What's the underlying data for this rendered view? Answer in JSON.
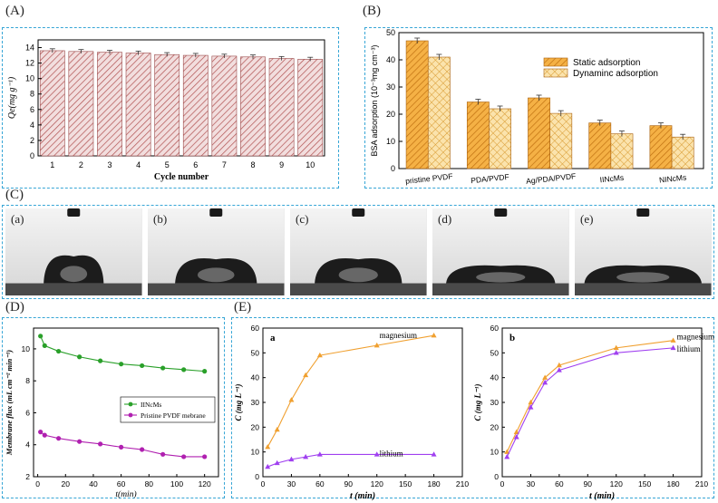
{
  "panels": {
    "A": {
      "label": "(A)"
    },
    "B": {
      "label": "(B)"
    },
    "C": {
      "label": "(C)",
      "photos": [
        {
          "label": "(a)",
          "spread": 0.44,
          "height": 0.56
        },
        {
          "label": "(b)",
          "spread": 0.6,
          "height": 0.5
        },
        {
          "label": "(c)",
          "spread": 0.64,
          "height": 0.5
        },
        {
          "label": "(d)",
          "spread": 0.8,
          "height": 0.36
        },
        {
          "label": "(e)",
          "spread": 0.86,
          "height": 0.36
        }
      ]
    },
    "D": {
      "label": "(D)"
    },
    "E": {
      "label": "(E)"
    }
  },
  "chart_data": [
    {
      "id": "A",
      "type": "bar",
      "categories": [
        "1",
        "2",
        "3",
        "4",
        "5",
        "6",
        "7",
        "8",
        "9",
        "10"
      ],
      "values": [
        13.6,
        13.5,
        13.4,
        13.3,
        13.1,
        13.0,
        12.9,
        12.8,
        12.6,
        12.5
      ],
      "errors": [
        0.25,
        0.25,
        0.25,
        0.25,
        0.25,
        0.25,
        0.25,
        0.25,
        0.25,
        0.25
      ],
      "xlabel": "Cycle number",
      "ylabel": "Qe(mg g⁻¹)",
      "ylim": [
        0,
        15
      ],
      "yticks": [
        0,
        2,
        4,
        6,
        8,
        10,
        12,
        14
      ],
      "bar_color": "#c88a8a"
    },
    {
      "id": "B",
      "type": "bar",
      "categories": [
        "pristine PVDF",
        "PDA/PVDF",
        "Ag/PDA/PVDF",
        "IINcMs",
        "NINcMs"
      ],
      "series": [
        {
          "name": "Static adsorption",
          "values": [
            47,
            24.5,
            26,
            16.8,
            15.8
          ],
          "errors": [
            1,
            1,
            1,
            1,
            1
          ],
          "color": "#f0a030"
        },
        {
          "name": "Dynaminc adsorption",
          "values": [
            41,
            22,
            20.3,
            12.8,
            11.6
          ],
          "errors": [
            1,
            1,
            1,
            1,
            1
          ],
          "color": "#f8d58a"
        }
      ],
      "ylabel": "BSA adsorption (10⁻³mg cm⁻³)",
      "ylim": [
        0,
        50
      ],
      "yticks": [
        0,
        10,
        20,
        30,
        40,
        50
      ],
      "legend": "top-right"
    },
    {
      "id": "D",
      "type": "line",
      "series": [
        {
          "name": "IINcMs",
          "x": [
            2,
            5,
            15,
            30,
            45,
            60,
            75,
            90,
            105,
            120
          ],
          "y": [
            10.8,
            10.2,
            9.85,
            9.5,
            9.25,
            9.05,
            8.95,
            8.8,
            8.7,
            8.6
          ],
          "color": "#2aa02a"
        },
        {
          "name": "Pristine PVDF mebrane",
          "x": [
            2,
            5,
            15,
            30,
            45,
            60,
            75,
            90,
            105,
            120
          ],
          "y": [
            4.8,
            4.6,
            4.4,
            4.2,
            4.05,
            3.85,
            3.7,
            3.4,
            3.25,
            3.25
          ],
          "color": "#b020b0"
        }
      ],
      "xlabel": "t(min)",
      "ylabel": "Membrane flux (mL cm⁻² min⁻¹)",
      "xlim": [
        -3,
        130
      ],
      "ylim": [
        2,
        11.3
      ],
      "xticks": [
        0,
        20,
        40,
        60,
        80,
        100,
        120
      ],
      "yticks": [
        2,
        4,
        6,
        8,
        10
      ],
      "legend": "center-right"
    },
    {
      "id": "E-a",
      "type": "line",
      "panel_letter": "a",
      "series": [
        {
          "name": "magnesium",
          "x": [
            5,
            15,
            30,
            45,
            60,
            120,
            180
          ],
          "y": [
            12,
            19,
            31,
            41,
            49,
            53,
            57
          ],
          "color": "#f0a030"
        },
        {
          "name": "lithium",
          "x": [
            5,
            15,
            30,
            45,
            60,
            120,
            180
          ],
          "y": [
            4,
            5.5,
            7,
            8,
            9,
            9,
            9
          ],
          "color": "#a040f0"
        }
      ],
      "xlabel": "t (min)",
      "ylabel": "C (mg L⁻¹)",
      "xlim": [
        0,
        210
      ],
      "ylim": [
        0,
        60
      ],
      "xticks": [
        0,
        30,
        60,
        90,
        120,
        150,
        180,
        210
      ],
      "yticks": [
        0,
        10,
        20,
        30,
        40,
        50,
        60
      ]
    },
    {
      "id": "E-b",
      "type": "line",
      "panel_letter": "b",
      "series": [
        {
          "name": "magnesium",
          "x": [
            5,
            15,
            30,
            45,
            60,
            120,
            180
          ],
          "y": [
            10,
            18,
            30,
            40,
            45,
            52,
            55
          ],
          "color": "#f0a030"
        },
        {
          "name": "lithium",
          "x": [
            5,
            15,
            30,
            45,
            60,
            120,
            180
          ],
          "y": [
            8,
            16,
            28,
            38,
            43,
            50,
            52
          ],
          "color": "#a040f0"
        }
      ],
      "xlabel": "t (min)",
      "ylabel": "C (mg L⁻¹)",
      "xlim": [
        0,
        210
      ],
      "ylim": [
        0,
        60
      ],
      "xticks": [
        0,
        30,
        60,
        90,
        120,
        150,
        180,
        210
      ],
      "yticks": [
        0,
        10,
        20,
        30,
        40,
        50,
        60
      ]
    }
  ]
}
